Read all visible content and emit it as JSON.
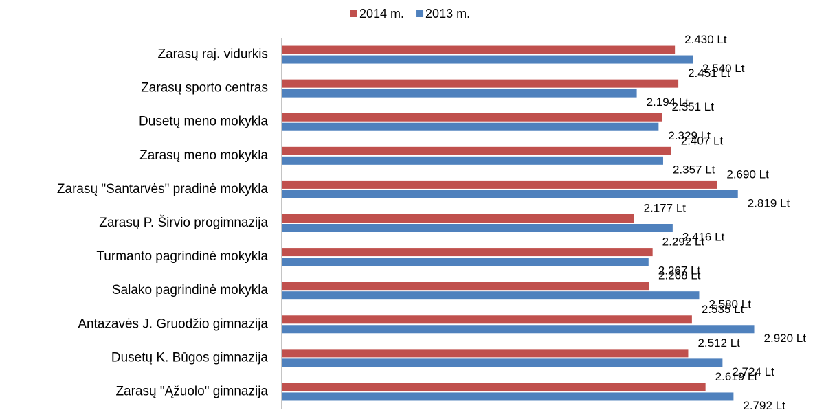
{
  "chart_data": {
    "type": "barh",
    "categories": [
      "Zarasų raj. vidurkis",
      "Zarasų sporto centras",
      "Dusetų meno mokykla",
      "Zarasų meno mokykla",
      "Zarasų \"Santarvės\" pradinė mokykla",
      "Zarasų P. Širvio progimnazija",
      "Turmanto pagrindinė mokykla",
      "Salako pagrindinė mokykla",
      "Antazavės J. Gruodžio gimnazija",
      "Dusetų K. Būgos gimnazija",
      "Zarasų \"Ąžuolo\" gimnazija"
    ],
    "series": [
      {
        "name": "2014 m.",
        "color": "#c0504d",
        "values": [
          2430,
          2451,
          2351,
          2407,
          2690,
          2177,
          2292,
          2268,
          2535,
          2512,
          2619
        ],
        "value_labels": [
          "2.430 Lt",
          "2.451 Lt",
          "2.351 Lt",
          "2.407 Lt",
          "2.690 Lt",
          "2.177 Lt",
          "2.292 Lt",
          "2.268 Lt",
          "2.535 Lt",
          "2.512 Lt",
          "2.619 Lt"
        ]
      },
      {
        "name": "2013 m.",
        "color": "#4f81bd",
        "values": [
          2540,
          2194,
          2329,
          2357,
          2819,
          2416,
          2267,
          2580,
          2920,
          2724,
          2792
        ],
        "value_labels": [
          "2.540 Lt",
          "2.194 Lt",
          "2.329 Lt",
          "2.357 Lt",
          "2.819 Lt",
          "2.416 Lt",
          "2.267 Lt",
          "2.580 Lt",
          "2.920 Lt",
          "2.724 Lt",
          "2.792 Lt"
        ]
      }
    ],
    "xlim": [
      0,
      3300
    ],
    "legend": "top"
  }
}
